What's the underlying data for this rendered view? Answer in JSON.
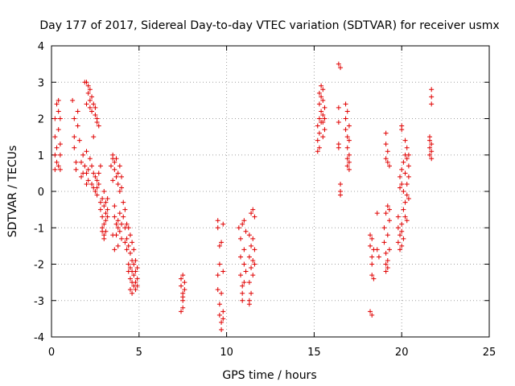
{
  "chart_data": {
    "type": "scatter",
    "title": "Day 177 of 2017, Sidereal Day-to-day VTEC variation (SDTVAR) for receiver usmx",
    "xlabel": "GPS time / hours",
    "ylabel": "SDTVAR / TECUs",
    "xlim": [
      0,
      25
    ],
    "ylim": [
      -4,
      4
    ],
    "xticks": [
      "0",
      "5",
      "10",
      "15",
      "20",
      "25"
    ],
    "yticks": [
      "-4",
      "-3",
      "-2",
      "-1",
      "0",
      "1",
      "2",
      "3",
      "4"
    ],
    "grid": true,
    "marker": "plus",
    "series": [
      {
        "name": "SDTVAR",
        "color": "#e00000",
        "points": [
          [
            0.2,
            0.6
          ],
          [
            0.2,
            1.0
          ],
          [
            0.2,
            1.5
          ],
          [
            0.2,
            2.0
          ],
          [
            0.3,
            2.4
          ],
          [
            0.3,
            0.8
          ],
          [
            0.3,
            1.2
          ],
          [
            0.4,
            2.2
          ],
          [
            0.4,
            1.7
          ],
          [
            0.4,
            0.7
          ],
          [
            0.4,
            2.5
          ],
          [
            0.5,
            1.3
          ],
          [
            0.5,
            1.0
          ],
          [
            0.5,
            2.0
          ],
          [
            0.5,
            0.6
          ],
          [
            1.2,
            2.5
          ],
          [
            1.3,
            2.0
          ],
          [
            1.3,
            1.5
          ],
          [
            1.3,
            1.2
          ],
          [
            1.4,
            0.8
          ],
          [
            1.4,
            0.6
          ],
          [
            1.5,
            1.8
          ],
          [
            1.5,
            2.2
          ],
          [
            1.6,
            1.4
          ],
          [
            1.7,
            0.4
          ],
          [
            1.7,
            0.8
          ],
          [
            1.8,
            1.0
          ],
          [
            1.8,
            0.5
          ],
          [
            1.9,
            0.7
          ],
          [
            1.9,
            3.0
          ],
          [
            2.0,
            0.2
          ],
          [
            2.0,
            0.5
          ],
          [
            2.0,
            1.1
          ],
          [
            2.0,
            2.4
          ],
          [
            2.0,
            3.0
          ],
          [
            2.1,
            0.3
          ],
          [
            2.1,
            2.7
          ],
          [
            2.1,
            2.9
          ],
          [
            2.1,
            0.6
          ],
          [
            2.2,
            2.8
          ],
          [
            2.2,
            2.5
          ],
          [
            2.2,
            0.9
          ],
          [
            2.2,
            2.3
          ],
          [
            2.3,
            0.2
          ],
          [
            2.3,
            2.6
          ],
          [
            2.3,
            2.2
          ],
          [
            2.3,
            0.7
          ],
          [
            2.4,
            0.1
          ],
          [
            2.4,
            2.4
          ],
          [
            2.4,
            1.5
          ],
          [
            2.4,
            0.5
          ],
          [
            2.5,
            2.1
          ],
          [
            2.5,
            2.3
          ],
          [
            2.5,
            0.4
          ],
          [
            2.5,
            0.0
          ],
          [
            2.6,
            1.9
          ],
          [
            2.6,
            2.0
          ],
          [
            2.6,
            0.3
          ],
          [
            2.6,
            -0.1
          ],
          [
            2.7,
            1.8
          ],
          [
            2.6,
            0.1
          ],
          [
            2.7,
            0.5
          ],
          [
            2.7,
            0.2
          ],
          [
            2.8,
            -0.3
          ],
          [
            2.8,
            -0.5
          ],
          [
            2.8,
            0.7
          ],
          [
            2.9,
            -0.7
          ],
          [
            2.9,
            -0.2
          ],
          [
            2.9,
            -1.0
          ],
          [
            3.0,
            -0.4
          ],
          [
            3.0,
            -0.9
          ],
          [
            3.0,
            -1.2
          ],
          [
            3.0,
            0.0
          ],
          [
            3.1,
            -0.6
          ],
          [
            3.1,
            -0.8
          ],
          [
            3.1,
            -1.1
          ],
          [
            3.1,
            -0.3
          ],
          [
            3.2,
            -0.5
          ],
          [
            3.2,
            -0.2
          ],
          [
            3.2,
            -0.7
          ],
          [
            3.0,
            -1.3
          ],
          [
            2.9,
            -1.1
          ],
          [
            3.4,
            0.7
          ],
          [
            3.5,
            0.9
          ],
          [
            3.5,
            1.0
          ],
          [
            3.5,
            0.3
          ],
          [
            3.6,
            0.8
          ],
          [
            3.6,
            0.6
          ],
          [
            3.6,
            -0.4
          ],
          [
            3.6,
            -0.7
          ],
          [
            3.7,
            0.4
          ],
          [
            3.7,
            0.9
          ],
          [
            3.7,
            -0.9
          ],
          [
            3.7,
            -1.2
          ],
          [
            3.8,
            0.5
          ],
          [
            3.8,
            0.2
          ],
          [
            3.8,
            -1.0
          ],
          [
            3.8,
            -1.5
          ],
          [
            3.8,
            -0.8
          ],
          [
            3.9,
            0.7
          ],
          [
            3.9,
            0.0
          ],
          [
            3.9,
            -1.1
          ],
          [
            3.9,
            -0.6
          ],
          [
            4.0,
            0.4
          ],
          [
            4.0,
            0.1
          ],
          [
            4.0,
            -1.3
          ],
          [
            4.0,
            -0.9
          ],
          [
            4.1,
            -0.3
          ],
          [
            4.1,
            -0.7
          ],
          [
            4.2,
            -1.0
          ],
          [
            4.2,
            -1.4
          ],
          [
            4.3,
            -1.6
          ],
          [
            3.6,
            -1.6
          ],
          [
            3.5,
            -1.2
          ],
          [
            4.2,
            -0.5
          ],
          [
            4.3,
            -0.9
          ],
          [
            4.3,
            -1.3
          ],
          [
            4.4,
            -1.0
          ],
          [
            4.4,
            -1.5
          ],
          [
            4.4,
            -2.0
          ],
          [
            4.4,
            -2.2
          ],
          [
            4.5,
            -1.2
          ],
          [
            4.5,
            -1.7
          ],
          [
            4.5,
            -2.1
          ],
          [
            4.5,
            -2.4
          ],
          [
            4.6,
            -1.4
          ],
          [
            4.6,
            -1.9
          ],
          [
            4.6,
            -2.2
          ],
          [
            4.6,
            -2.5
          ],
          [
            4.7,
            -1.6
          ],
          [
            4.7,
            -2.0
          ],
          [
            4.7,
            -2.3
          ],
          [
            4.7,
            -2.6
          ],
          [
            4.8,
            -1.9
          ],
          [
            4.8,
            -2.2
          ],
          [
            4.8,
            -2.5
          ],
          [
            4.8,
            -2.7
          ],
          [
            4.9,
            -2.1
          ],
          [
            4.9,
            -2.4
          ],
          [
            4.9,
            -2.6
          ],
          [
            4.5,
            -2.7
          ],
          [
            4.6,
            -2.8
          ],
          [
            7.4,
            -2.4
          ],
          [
            7.4,
            -2.6
          ],
          [
            7.5,
            -2.8
          ],
          [
            7.5,
            -3.0
          ],
          [
            7.5,
            -2.3
          ],
          [
            7.5,
            -3.2
          ],
          [
            7.6,
            -2.5
          ],
          [
            7.6,
            -2.7
          ],
          [
            7.4,
            -3.3
          ],
          [
            7.5,
            -2.9
          ],
          [
            9.5,
            -0.8
          ],
          [
            9.5,
            -1.0
          ],
          [
            9.5,
            -2.3
          ],
          [
            9.5,
            -2.7
          ],
          [
            9.6,
            -3.1
          ],
          [
            9.6,
            -3.4
          ],
          [
            9.6,
            -2.0
          ],
          [
            9.6,
            -1.5
          ],
          [
            9.7,
            -3.6
          ],
          [
            9.7,
            -3.8
          ],
          [
            9.7,
            -2.8
          ],
          [
            9.7,
            -1.4
          ],
          [
            9.8,
            -3.3
          ],
          [
            9.8,
            -3.5
          ],
          [
            9.8,
            -0.9
          ],
          [
            9.8,
            -2.2
          ],
          [
            10.7,
            -1.0
          ],
          [
            10.8,
            -1.3
          ],
          [
            10.8,
            -1.8
          ],
          [
            10.8,
            -2.3
          ],
          [
            10.9,
            -2.8
          ],
          [
            10.9,
            -3.0
          ],
          [
            10.9,
            -2.6
          ],
          [
            10.9,
            -0.9
          ],
          [
            11.0,
            -2.0
          ],
          [
            11.0,
            -2.5
          ],
          [
            11.0,
            -1.6
          ],
          [
            11.0,
            -0.8
          ],
          [
            11.1,
            -1.1
          ],
          [
            11.1,
            -2.2
          ],
          [
            11.3,
            -1.2
          ],
          [
            11.3,
            -1.8
          ],
          [
            11.3,
            -2.5
          ],
          [
            11.3,
            -3.0
          ],
          [
            11.4,
            -0.6
          ],
          [
            11.4,
            -1.5
          ],
          [
            11.4,
            -2.1
          ],
          [
            11.4,
            -2.8
          ],
          [
            11.5,
            -0.5
          ],
          [
            11.5,
            -1.3
          ],
          [
            11.5,
            -1.9
          ],
          [
            11.5,
            -2.3
          ],
          [
            11.6,
            -0.7
          ],
          [
            11.6,
            -1.6
          ],
          [
            11.6,
            -2.0
          ],
          [
            11.3,
            -3.1
          ],
          [
            15.2,
            1.1
          ],
          [
            15.2,
            1.4
          ],
          [
            15.2,
            1.8
          ],
          [
            15.3,
            2.0
          ],
          [
            15.3,
            2.4
          ],
          [
            15.3,
            2.7
          ],
          [
            15.3,
            1.6
          ],
          [
            15.4,
            2.2
          ],
          [
            15.4,
            2.6
          ],
          [
            15.4,
            2.9
          ],
          [
            15.4,
            1.9
          ],
          [
            15.5,
            2.1
          ],
          [
            15.5,
            2.5
          ],
          [
            15.5,
            2.8
          ],
          [
            15.5,
            1.5
          ],
          [
            15.6,
            1.7
          ],
          [
            15.6,
            2.3
          ],
          [
            15.6,
            2.0
          ],
          [
            15.3,
            1.2
          ],
          [
            15.5,
            1.9
          ],
          [
            16.4,
            3.5
          ],
          [
            16.4,
            2.3
          ],
          [
            16.4,
            1.9
          ],
          [
            16.4,
            1.3
          ],
          [
            16.5,
            0.0
          ],
          [
            16.5,
            0.2
          ],
          [
            16.5,
            -0.1
          ],
          [
            16.5,
            3.4
          ],
          [
            16.4,
            1.2
          ],
          [
            16.8,
            2.4
          ],
          [
            16.8,
            2.0
          ],
          [
            16.8,
            1.7
          ],
          [
            16.9,
            1.5
          ],
          [
            16.9,
            1.2
          ],
          [
            16.9,
            0.9
          ],
          [
            16.9,
            0.7
          ],
          [
            17.0,
            0.8
          ],
          [
            17.0,
            1.0
          ],
          [
            17.0,
            1.4
          ],
          [
            17.0,
            1.8
          ],
          [
            17.0,
            0.6
          ],
          [
            16.9,
            2.2
          ],
          [
            18.2,
            -1.2
          ],
          [
            18.2,
            -1.5
          ],
          [
            18.3,
            -1.8
          ],
          [
            18.3,
            -2.0
          ],
          [
            18.3,
            -2.3
          ],
          [
            18.3,
            -1.3
          ],
          [
            18.4,
            -1.6
          ],
          [
            18.4,
            -2.4
          ],
          [
            18.2,
            -3.3
          ],
          [
            18.3,
            -3.4
          ],
          [
            18.6,
            -0.6
          ],
          [
            18.6,
            -1.6
          ],
          [
            18.7,
            -1.8
          ],
          [
            19.0,
            -1.0
          ],
          [
            19.0,
            -1.4
          ],
          [
            19.1,
            -1.7
          ],
          [
            19.1,
            -2.0
          ],
          [
            19.1,
            -2.2
          ],
          [
            19.1,
            -0.6
          ],
          [
            19.2,
            -1.2
          ],
          [
            19.2,
            -1.9
          ],
          [
            19.2,
            -0.4
          ],
          [
            19.2,
            -2.1
          ],
          [
            19.3,
            -1.6
          ],
          [
            19.3,
            -0.8
          ],
          [
            19.3,
            -0.5
          ],
          [
            19.1,
            0.9
          ],
          [
            19.1,
            1.3
          ],
          [
            19.1,
            1.6
          ],
          [
            19.2,
            0.8
          ],
          [
            19.3,
            0.7
          ],
          [
            19.2,
            1.1
          ],
          [
            19.8,
            -1.4
          ],
          [
            19.8,
            -1.0
          ],
          [
            19.8,
            -0.7
          ],
          [
            19.9,
            -1.6
          ],
          [
            19.9,
            -1.2
          ],
          [
            19.9,
            0.1
          ],
          [
            19.9,
            0.4
          ],
          [
            20.0,
            -0.9
          ],
          [
            20.0,
            -1.1
          ],
          [
            20.0,
            -1.5
          ],
          [
            20.0,
            0.2
          ],
          [
            20.0,
            0.6
          ],
          [
            20.0,
            1.7
          ],
          [
            20.0,
            1.8
          ],
          [
            20.1,
            -0.5
          ],
          [
            20.1,
            -1.3
          ],
          [
            20.1,
            0.0
          ],
          [
            20.1,
            0.8
          ],
          [
            20.2,
            -0.3
          ],
          [
            20.2,
            -0.7
          ],
          [
            20.2,
            0.5
          ],
          [
            20.2,
            1.0
          ],
          [
            20.2,
            1.4
          ],
          [
            20.3,
            0.2
          ],
          [
            20.3,
            -0.1
          ],
          [
            20.3,
            0.9
          ],
          [
            20.3,
            1.2
          ],
          [
            20.4,
            0.7
          ],
          [
            20.4,
            1.0
          ],
          [
            20.4,
            0.4
          ],
          [
            20.4,
            -0.2
          ],
          [
            20.3,
            -0.8
          ],
          [
            21.6,
            1.0
          ],
          [
            21.6,
            1.2
          ],
          [
            21.6,
            1.4
          ],
          [
            21.6,
            1.5
          ],
          [
            21.7,
            0.9
          ],
          [
            21.7,
            1.1
          ],
          [
            21.7,
            1.3
          ],
          [
            21.7,
            2.4
          ],
          [
            21.7,
            2.6
          ],
          [
            21.7,
            2.8
          ]
        ]
      }
    ]
  }
}
